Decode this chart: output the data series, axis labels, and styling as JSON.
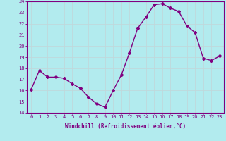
{
  "x": [
    0,
    1,
    2,
    3,
    4,
    5,
    6,
    7,
    8,
    9,
    10,
    11,
    12,
    13,
    14,
    15,
    16,
    17,
    18,
    19,
    20,
    21,
    22,
    23
  ],
  "y": [
    16.1,
    17.8,
    17.2,
    17.2,
    17.1,
    16.6,
    16.2,
    15.4,
    14.8,
    14.5,
    16.0,
    17.4,
    19.4,
    21.6,
    22.6,
    23.7,
    23.8,
    23.4,
    23.1,
    21.8,
    21.2,
    18.9,
    18.7,
    19.1
  ],
  "line_color": "#800080",
  "marker": "D",
  "marker_size": 2,
  "bg_color": "#b2ebee",
  "grid_color": "#c0d8db",
  "ylabel_ticks": [
    14,
    15,
    16,
    17,
    18,
    19,
    20,
    21,
    22,
    23,
    24
  ],
  "xlabel": "Windchill (Refroidissement éolien,°C)",
  "xlim": [
    -0.5,
    23.5
  ],
  "ylim": [
    14,
    24
  ],
  "axis_color": "#800080",
  "tick_color": "#800080",
  "font_name": "monospace",
  "tick_fontsize": 5,
  "xlabel_fontsize": 5.5,
  "linewidth": 1.0
}
